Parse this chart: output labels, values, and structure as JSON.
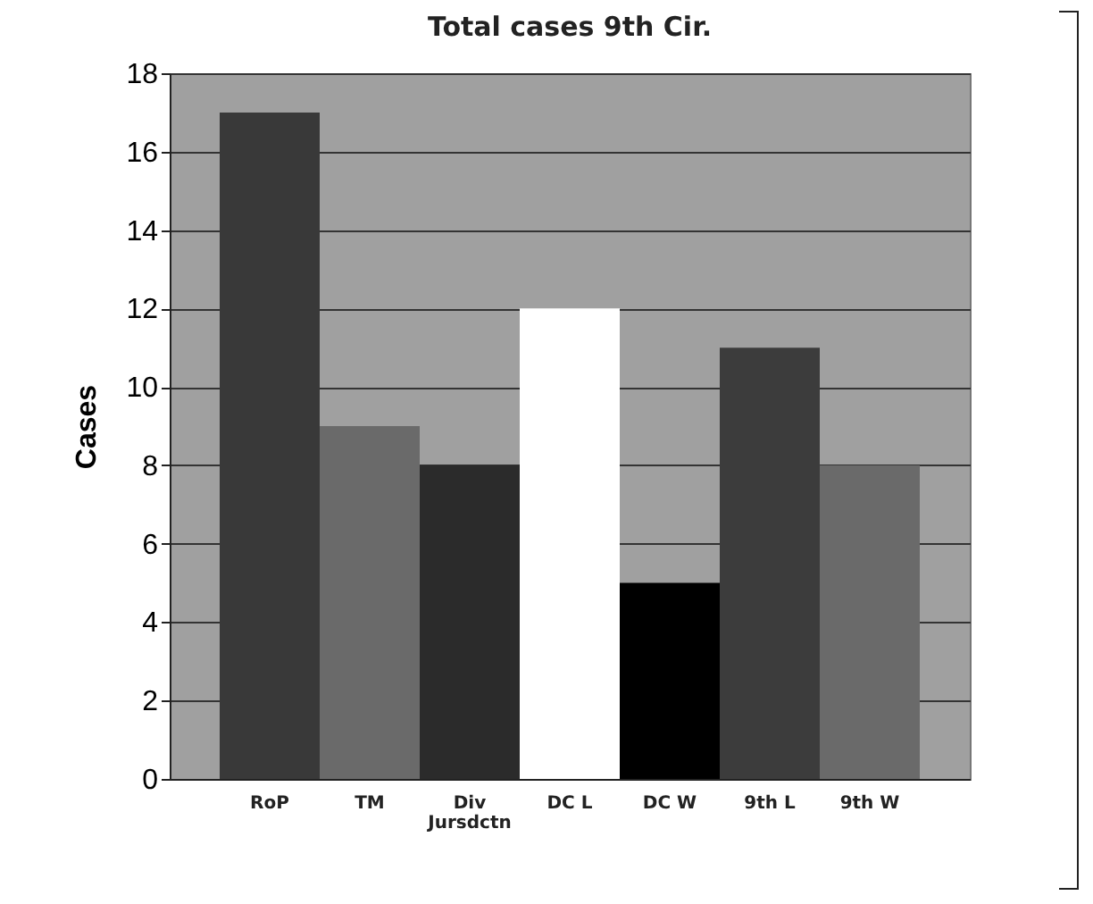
{
  "chart_data": {
    "type": "bar",
    "title": "Total cases 9th Cir.",
    "ylabel": "Cases",
    "categories": [
      "RoP",
      "TM",
      "Div\nJursdctn",
      "DC L",
      "DC W",
      "9th L",
      "9th W"
    ],
    "values": [
      17,
      9,
      8,
      12,
      5,
      11,
      8
    ],
    "colors": [
      "#393939",
      "#6a6a6a",
      "#2b2b2b",
      "#ffffff",
      "#000000",
      "#3c3c3c",
      "#6a6a6a"
    ],
    "ylim": [
      0,
      18
    ],
    "yticks": [
      0,
      2,
      4,
      6,
      8,
      10,
      12,
      14,
      16,
      18
    ],
    "grid": "y"
  }
}
